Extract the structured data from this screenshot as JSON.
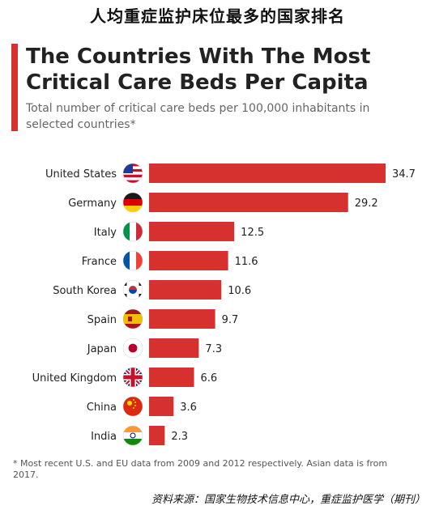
{
  "caption": "人均重症监护床位最多的国家排名",
  "source": "资料来源：国家生物技术信息中心，重症监护医学（期刊）",
  "colors": {
    "accent": "#d6312f",
    "bar": "#d6312f"
  },
  "chart_data": {
    "type": "bar",
    "orientation": "horizontal",
    "title": "The Countries With The Most Critical Care Beds Per Capita",
    "subtitle": "Total number of critical care beds per 100,000 inhabitants in selected countries*",
    "categories": [
      "United States",
      "Germany",
      "Italy",
      "France",
      "South Korea",
      "Spain",
      "Japan",
      "United Kingdom",
      "China",
      "India"
    ],
    "values": [
      34.7,
      29.2,
      12.5,
      11.6,
      10.6,
      9.7,
      7.3,
      6.6,
      3.6,
      2.3
    ],
    "value_labels": [
      "34.7",
      "29.2",
      "12.5",
      "11.6",
      "10.6",
      "9.7",
      "7.3",
      "6.6",
      "3.6",
      "2.3"
    ],
    "flag_icons": [
      "us-flag-icon",
      "germany-flag-icon",
      "italy-flag-icon",
      "france-flag-icon",
      "south-korea-flag-icon",
      "spain-flag-icon",
      "japan-flag-icon",
      "uk-flag-icon",
      "china-flag-icon",
      "india-flag-icon"
    ],
    "xlim": [
      0,
      34.7
    ],
    "grid": false,
    "footnote": "* Most recent U.S. and EU data from 2009 and 2012 respectively. Asian data is from 2017."
  }
}
